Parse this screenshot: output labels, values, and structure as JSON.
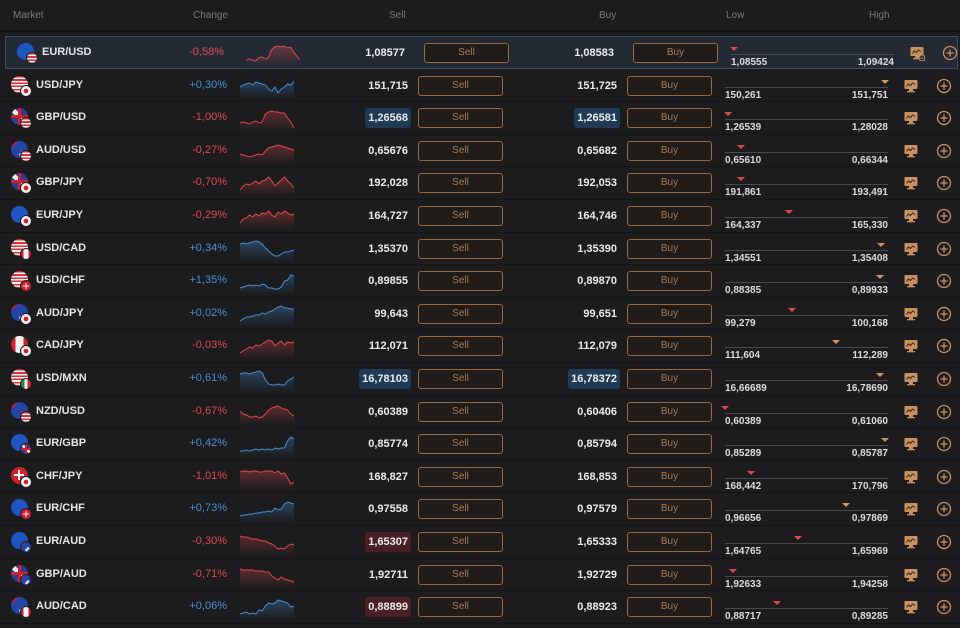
{
  "header": {
    "market": "Market",
    "change": "Change",
    "sell": "Sell",
    "buy": "Buy",
    "low": "Low",
    "high": "High"
  },
  "colors": {
    "negative": "#e04a4f",
    "positive": "#4a8fd8",
    "button_border": "#9a6a45",
    "button_text": "#a77b58",
    "marker_orange": "#c99860"
  },
  "buttons": {
    "sell_label": "Sell",
    "buy_label": "Buy"
  },
  "rows": [
    {
      "pair": "EUR/USD",
      "base": "eu",
      "quote": "us",
      "change": "-0,58%",
      "dir": "neg",
      "sell": "1,08577",
      "buy": "1,08583",
      "sell_hl": "",
      "buy_hl": "",
      "low": "1,08555",
      "high": "1,09424",
      "marker": 2,
      "marker_color": "red",
      "selected": true,
      "watch_icon": "monitor-minus-icon"
    },
    {
      "pair": "USD/JPY",
      "base": "us",
      "quote": "jp",
      "change": "+0,30%",
      "dir": "pos",
      "sell": "151,715",
      "buy": "151,725",
      "sell_hl": "",
      "buy_hl": "",
      "low": "150,261",
      "high": "151,751",
      "marker": 98,
      "marker_color": "orange",
      "watch_icon": "monitor-icon"
    },
    {
      "pair": "GBP/USD",
      "base": "gb",
      "quote": "us",
      "change": "-1,00%",
      "dir": "neg",
      "sell": "1,26568",
      "buy": "1,26581",
      "sell_hl": "blue",
      "buy_hl": "blue",
      "low": "1,26539",
      "high": "1,28028",
      "marker": 2,
      "marker_color": "red",
      "watch_icon": "monitor-icon"
    },
    {
      "pair": "AUD/USD",
      "base": "au",
      "quote": "us",
      "change": "-0,27%",
      "dir": "neg",
      "sell": "0,65676",
      "buy": "0,65682",
      "sell_hl": "",
      "buy_hl": "",
      "low": "0,65610",
      "high": "0,66344",
      "marker": 10,
      "marker_color": "red",
      "watch_icon": "monitor-icon"
    },
    {
      "pair": "GBP/JPY",
      "base": "gb",
      "quote": "jp",
      "change": "-0,70%",
      "dir": "neg",
      "sell": "192,028",
      "buy": "192,053",
      "sell_hl": "",
      "buy_hl": "",
      "low": "191,861",
      "high": "193,491",
      "marker": 10,
      "marker_color": "red",
      "watch_icon": "monitor-icon"
    },
    {
      "pair": "EUR/JPY",
      "base": "eu",
      "quote": "jp",
      "change": "-0,29%",
      "dir": "neg",
      "sell": "164,727",
      "buy": "164,746",
      "sell_hl": "",
      "buy_hl": "",
      "low": "164,337",
      "high": "165,330",
      "marker": 39,
      "marker_color": "red",
      "watch_icon": "monitor-icon"
    },
    {
      "pair": "USD/CAD",
      "base": "us",
      "quote": "ca",
      "change": "+0,34%",
      "dir": "pos",
      "sell": "1,35370",
      "buy": "1,35390",
      "sell_hl": "",
      "buy_hl": "",
      "low": "1,34551",
      "high": "1,35408",
      "marker": 96,
      "marker_color": "orange",
      "watch_icon": "monitor-icon"
    },
    {
      "pair": "USD/CHF",
      "base": "us",
      "quote": "ch",
      "change": "+1,35%",
      "dir": "pos",
      "sell": "0,89855",
      "buy": "0,89870",
      "sell_hl": "",
      "buy_hl": "",
      "low": "0,88385",
      "high": "0,89933",
      "marker": 95,
      "marker_color": "orange",
      "watch_icon": "monitor-icon"
    },
    {
      "pair": "AUD/JPY",
      "base": "au",
      "quote": "jp",
      "change": "+0,02%",
      "dir": "pos",
      "sell": "99,643",
      "buy": "99,651",
      "sell_hl": "",
      "buy_hl": "",
      "low": "99,279",
      "high": "100,168",
      "marker": 41,
      "marker_color": "red",
      "watch_icon": "monitor-icon"
    },
    {
      "pair": "CAD/JPY",
      "base": "ca",
      "quote": "jp",
      "change": "-0,03%",
      "dir": "neg",
      "sell": "112,071",
      "buy": "112,079",
      "sell_hl": "",
      "buy_hl": "",
      "low": "111,604",
      "high": "112,289",
      "marker": 68,
      "marker_color": "orange",
      "watch_icon": "monitor-icon"
    },
    {
      "pair": "USD/MXN",
      "base": "us",
      "quote": "mx",
      "change": "+0,61%",
      "dir": "pos",
      "sell": "16,78103",
      "buy": "16,78372",
      "sell_hl": "blue",
      "buy_hl": "blue",
      "low": "16,66689",
      "high": "16,78690",
      "marker": 95,
      "marker_color": "orange",
      "watch_icon": "monitor-icon"
    },
    {
      "pair": "NZD/USD",
      "base": "nz",
      "quote": "us",
      "change": "-0,67%",
      "dir": "neg",
      "sell": "0,60389",
      "buy": "0,60406",
      "sell_hl": "",
      "buy_hl": "",
      "low": "0,60389",
      "high": "0,61060",
      "marker": 0,
      "marker_color": "red",
      "watch_icon": "monitor-icon"
    },
    {
      "pair": "EUR/GBP",
      "base": "eu",
      "quote": "gb",
      "change": "+0,42%",
      "dir": "pos",
      "sell": "0,85774",
      "buy": "0,85794",
      "sell_hl": "",
      "buy_hl": "",
      "low": "0,85289",
      "high": "0,85787",
      "marker": 98,
      "marker_color": "orange",
      "watch_icon": "monitor-icon"
    },
    {
      "pair": "CHF/JPY",
      "base": "ch",
      "quote": "jp",
      "change": "-1,01%",
      "dir": "neg",
      "sell": "168,827",
      "buy": "168,853",
      "sell_hl": "",
      "buy_hl": "",
      "low": "168,442",
      "high": "170,796",
      "marker": 16,
      "marker_color": "red",
      "watch_icon": "monitor-icon"
    },
    {
      "pair": "EUR/CHF",
      "base": "eu",
      "quote": "ch",
      "change": "+0,73%",
      "dir": "pos",
      "sell": "0,97558",
      "buy": "0,97579",
      "sell_hl": "",
      "buy_hl": "",
      "low": "0,96656",
      "high": "0,97869",
      "marker": 74,
      "marker_color": "orange",
      "watch_icon": "monitor-icon"
    },
    {
      "pair": "EUR/AUD",
      "base": "eu",
      "quote": "au",
      "change": "-0,30%",
      "dir": "neg",
      "sell": "1,65307",
      "buy": "1,65333",
      "sell_hl": "red",
      "buy_hl": "",
      "low": "1,64765",
      "high": "1,65969",
      "marker": 45,
      "marker_color": "red",
      "watch_icon": "monitor-icon"
    },
    {
      "pair": "GBP/AUD",
      "base": "gb",
      "quote": "au",
      "change": "-0,71%",
      "dir": "neg",
      "sell": "1,92711",
      "buy": "1,92729",
      "sell_hl": "",
      "buy_hl": "",
      "low": "1,92633",
      "high": "1,94258",
      "marker": 5,
      "marker_color": "red",
      "watch_icon": "monitor-icon"
    },
    {
      "pair": "AUD/CAD",
      "base": "au",
      "quote": "ca",
      "change": "+0,06%",
      "dir": "pos",
      "sell": "0,88899",
      "buy": "0,88923",
      "sell_hl": "red",
      "buy_hl": "",
      "low": "0,88717",
      "high": "0,89285",
      "marker": 32,
      "marker_color": "red",
      "watch_icon": "monitor-icon"
    }
  ],
  "sparklines": [
    [
      18,
      17,
      18,
      19,
      16,
      15,
      17,
      16,
      8,
      5,
      4,
      5,
      4,
      6,
      5,
      10,
      14,
      18
    ],
    [
      12,
      10,
      9,
      8,
      10,
      7,
      8,
      9,
      10,
      14,
      16,
      12,
      18,
      14,
      12,
      9,
      10,
      6
    ],
    [
      16,
      15,
      16,
      17,
      15,
      14,
      16,
      15,
      7,
      5,
      4,
      5,
      5,
      6,
      6,
      11,
      15,
      21
    ],
    [
      14,
      15,
      16,
      17,
      16,
      15,
      14,
      15,
      11,
      8,
      7,
      6,
      5,
      6,
      7,
      8,
      9,
      10
    ],
    [
      18,
      14,
      12,
      13,
      11,
      9,
      12,
      9,
      8,
      5,
      9,
      14,
      11,
      8,
      5,
      9,
      12,
      16
    ],
    [
      18,
      14,
      13,
      10,
      12,
      9,
      11,
      8,
      9,
      6,
      10,
      12,
      7,
      9,
      6,
      8,
      10,
      9
    ],
    [
      6,
      5,
      6,
      5,
      4,
      3,
      4,
      6,
      10,
      13,
      16,
      18,
      18,
      16,
      14,
      14,
      13,
      12
    ],
    [
      18,
      17,
      16,
      15,
      16,
      15,
      16,
      14,
      15,
      18,
      18,
      19,
      19,
      17,
      11,
      10,
      5,
      6
    ],
    [
      18,
      16,
      14,
      14,
      13,
      12,
      12,
      10,
      11,
      9,
      8,
      6,
      4,
      3,
      5,
      5,
      6,
      6
    ],
    [
      18,
      16,
      14,
      12,
      13,
      10,
      11,
      9,
      7,
      5,
      6,
      11,
      8,
      6,
      10,
      7,
      8,
      7
    ],
    [
      6,
      5,
      5,
      6,
      5,
      4,
      3,
      5,
      12,
      16,
      17,
      17,
      16,
      17,
      17,
      13,
      11,
      9
    ],
    [
      10,
      13,
      14,
      16,
      16,
      15,
      17,
      16,
      13,
      9,
      7,
      6,
      5,
      7,
      8,
      9,
      13,
      15
    ],
    [
      18,
      18,
      17,
      18,
      17,
      16,
      17,
      16,
      17,
      16,
      17,
      15,
      16,
      15,
      15,
      8,
      4,
      6
    ],
    [
      6,
      5,
      5,
      6,
      5,
      5,
      6,
      6,
      5,
      5,
      5,
      7,
      5,
      8,
      7,
      12,
      18,
      16
    ],
    [
      18,
      17,
      17,
      16,
      16,
      15,
      15,
      14,
      14,
      13,
      14,
      10,
      12,
      11,
      6,
      4,
      5,
      6
    ],
    [
      5,
      6,
      6,
      7,
      8,
      8,
      9,
      10,
      10,
      12,
      13,
      15,
      18,
      17,
      18,
      15,
      13,
      14
    ],
    [
      5,
      6,
      6,
      6,
      6,
      7,
      7,
      7,
      8,
      8,
      12,
      14,
      16,
      13,
      15,
      16,
      17,
      18
    ],
    [
      18,
      17,
      16,
      18,
      17,
      18,
      14,
      15,
      10,
      7,
      8,
      7,
      4,
      5,
      6,
      7,
      11,
      10
    ]
  ]
}
